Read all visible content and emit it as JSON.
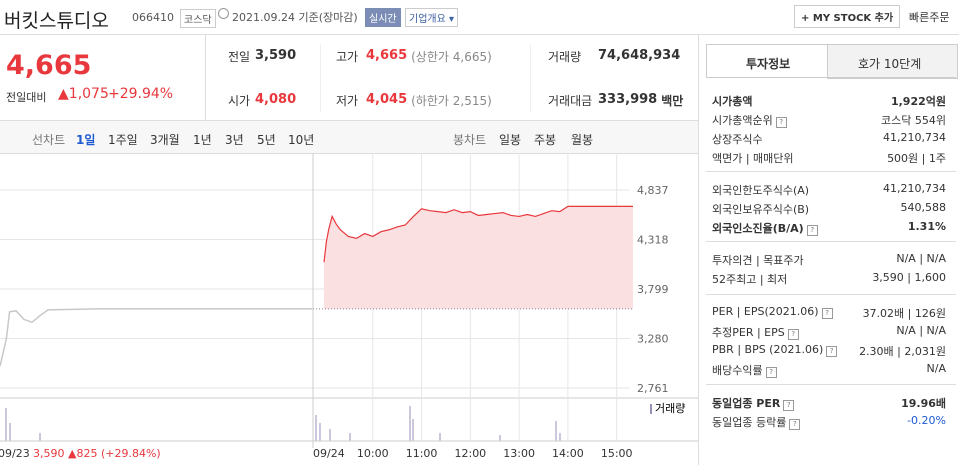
{
  "header": {
    "name": "버킷스튜디오",
    "code": "066410",
    "market": "코스닥",
    "date": "2021.09.24 기준(장마감)",
    "realtime": "실시간",
    "overview": "기업개요",
    "mystock": "MY STOCK 추가",
    "quick_order": "빠른주문"
  },
  "price": {
    "current": "4,665",
    "change_label": "전일대비",
    "change": "1,075",
    "change_rate": "+29.94%"
  },
  "summary": [
    [
      {
        "label": "전일",
        "value": "3,590"
      },
      {
        "label": "고가",
        "value": "4,665",
        "note": "(상한가 4,665)"
      },
      {
        "label": "거래량",
        "value": "74,648,934"
      }
    ],
    [
      {
        "label": "시가",
        "value": "4,080"
      },
      {
        "label": "저가",
        "value": "4,045",
        "note": "(하한가 2,515)"
      },
      {
        "label": "거래대금",
        "value": "333,998",
        "unit": "백만"
      }
    ]
  ],
  "tabs": {
    "line_label": "선차트",
    "line": [
      "1일",
      "1주일",
      "3개월",
      "1년",
      "3년",
      "5년",
      "10년"
    ],
    "candle_label": "봉차트",
    "candle": [
      "일봉",
      "주봉",
      "월봉"
    ]
  },
  "chart": {
    "ylim": [
      2656,
      5141
    ],
    "yticks": [
      {
        "value": 4837,
        "label": "4,837"
      },
      {
        "value": 4318,
        "label": "4,318"
      },
      {
        "value": 3799,
        "label": "3,799"
      },
      {
        "value": 3280,
        "label": "3,280"
      },
      {
        "value": 2761,
        "label": "2,761"
      }
    ],
    "prev_close": 3590,
    "line_color": "#e8383d",
    "fill_color": "#fbe0e1",
    "prev_color": "#c8c8c8",
    "volume_label": "거래량",
    "xticks": [
      "10:00",
      "11:00",
      "12:00",
      "13:00",
      "14:00",
      "15:00"
    ],
    "days": [
      {
        "label": "09/23",
        "close": "3,590",
        "change": "825",
        "rate": "(+29.84%)",
        "x": [
          "09:00",
          "09:08",
          "09:12",
          "09:20",
          "09:30",
          "09:40",
          "09:50",
          "10:00",
          "11:00",
          "13:00",
          "15:30"
        ],
        "values": [
          2990,
          3280,
          3560,
          3570,
          3480,
          3450,
          3520,
          3580,
          3590,
          3590,
          3590
        ]
      },
      {
        "label": "09/24",
        "x": [
          "09:00",
          "09:03",
          "09:06",
          "09:10",
          "09:15",
          "09:20",
          "09:30",
          "09:40",
          "09:50",
          "10:00",
          "10:10",
          "10:20",
          "10:30",
          "10:40",
          "10:50",
          "11:00",
          "11:10",
          "11:20",
          "11:30",
          "11:40",
          "11:50",
          "12:00",
          "12:10",
          "12:20",
          "12:30",
          "12:40",
          "12:50",
          "13:00",
          "13:10",
          "13:20",
          "13:30",
          "13:40",
          "13:50",
          "14:00",
          "14:30",
          "15:00",
          "15:20"
        ],
        "values": [
          4080,
          4300,
          4430,
          4560,
          4480,
          4420,
          4350,
          4330,
          4380,
          4350,
          4400,
          4420,
          4450,
          4470,
          4560,
          4640,
          4620,
          4610,
          4600,
          4630,
          4600,
          4610,
          4570,
          4580,
          4590,
          4600,
          4570,
          4560,
          4580,
          4560,
          4590,
          4620,
          4610,
          4665,
          4665,
          4665,
          4665
        ]
      }
    ]
  },
  "side": {
    "tabs": [
      "투자정보",
      "호가 10단계"
    ],
    "groups": [
      [
        {
          "label": "시가총액",
          "value": "1,922억원",
          "bold": true
        },
        {
          "label": "시가총액순위",
          "value": "코스닥 554위",
          "help": true
        },
        {
          "label": "상장주식수",
          "value": "41,210,734"
        },
        {
          "label": "액면가 | 매매단위",
          "value": "500원 | 1주"
        }
      ],
      [
        {
          "label": "외국인한도주식수(A)",
          "value": "41,210,734"
        },
        {
          "label": "외국인보유주식수(B)",
          "value": "540,588"
        },
        {
          "label": "외국인소진율(B/A)",
          "value": "1.31%",
          "bold": true,
          "help": true
        }
      ],
      [
        {
          "label": "투자의견 | 목표주가",
          "value": "N/A | N/A"
        },
        {
          "label": "52주최고 | 최저",
          "value": "3,590 | 1,600"
        }
      ],
      [
        {
          "label": "PER | EPS(2021.06)",
          "value": "37.02배 | 126원",
          "help": true
        },
        {
          "label": "추정PER | EPS",
          "value": "N/A | N/A",
          "help": true
        },
        {
          "label": "PBR | BPS (2021.06)",
          "value": "2.30배 | 2,031원",
          "help": true
        },
        {
          "label": "배당수익률",
          "value": "N/A",
          "help": true
        }
      ],
      [
        {
          "label": "동일업종 PER",
          "value": "19.96배",
          "bold": true,
          "help": true
        },
        {
          "label": "동일업종 등락률",
          "value": "-0.20%",
          "help": true,
          "blue": true
        }
      ]
    ]
  }
}
